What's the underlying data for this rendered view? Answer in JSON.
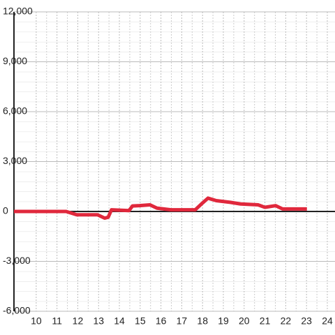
{
  "chart_data": {
    "type": "line",
    "x": [
      8.93,
      11.44,
      11.95,
      12.95,
      13.29,
      13.46,
      13.62,
      14.46,
      14.63,
      14.97,
      15.47,
      15.81,
      16.48,
      17.65,
      17.99,
      18.26,
      18.66,
      19.33,
      19.83,
      20.67,
      21.0,
      21.51,
      21.85,
      23.02
    ],
    "series": [
      {
        "color": "#e0283c",
        "values": [
          0,
          0,
          -200,
          -200,
          -400,
          -350,
          100,
          50,
          330,
          350,
          400,
          200,
          100,
          100,
          500,
          800,
          650,
          550,
          450,
          400,
          250,
          350,
          150,
          150
        ]
      }
    ],
    "xlim": [
      8.93,
      24.37
    ],
    "xticks": [
      10,
      11,
      12,
      13,
      14,
      15,
      16,
      17,
      18,
      19,
      20,
      21,
      22,
      23,
      24
    ],
    "ylim": [
      -6000,
      12000
    ],
    "yticks": [
      {
        "value": -6000,
        "label": "-6,000"
      },
      {
        "value": -3000,
        "label": "-3,000"
      },
      0,
      {
        "value": 3000,
        "label": "3,000"
      },
      {
        "value": 6000,
        "label": "6,000"
      },
      {
        "value": 9000,
        "label": "9,000"
      },
      {
        "value": 12000,
        "label": "12,000"
      }
    ],
    "grid": true
  }
}
